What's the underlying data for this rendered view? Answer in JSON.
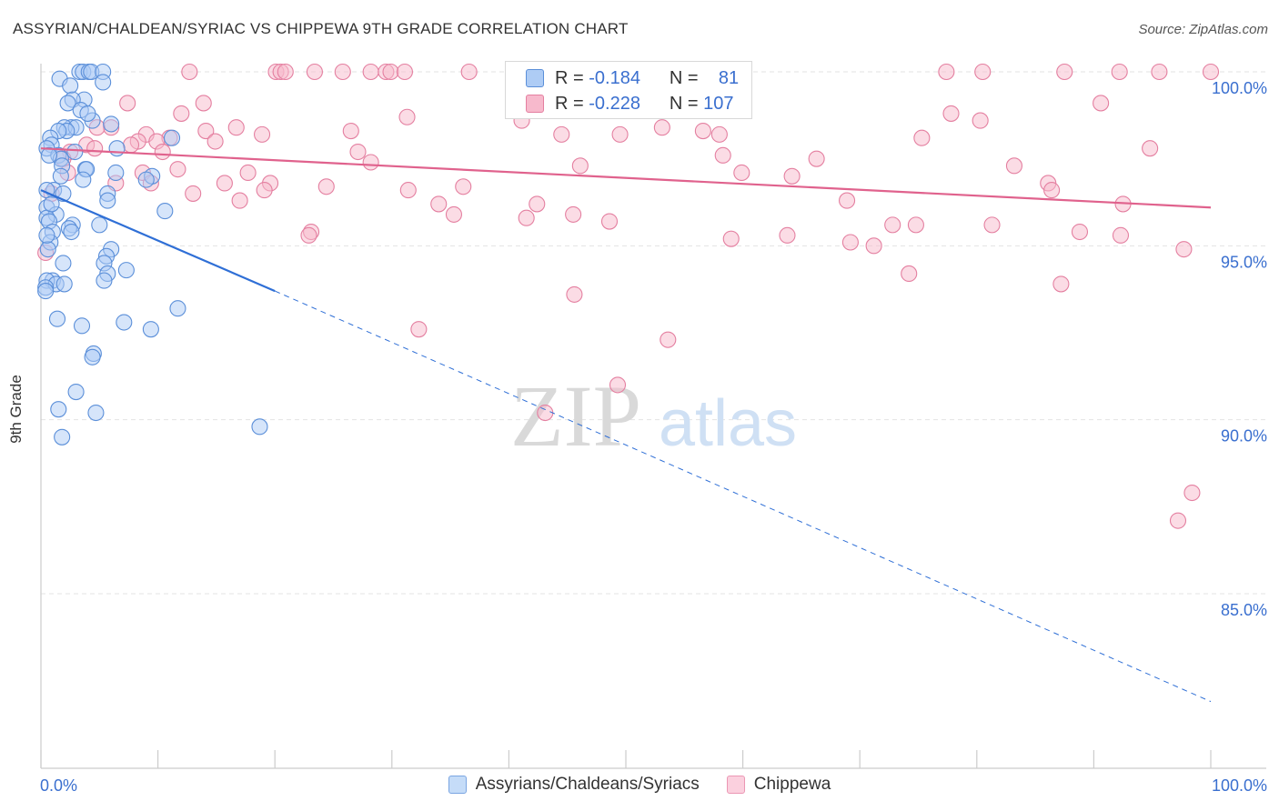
{
  "title": "ASSYRIAN/CHALDEAN/SYRIAC VS CHIPPEWA 9TH GRADE CORRELATION CHART",
  "source": "Source: ZipAtlas.com",
  "watermark": {
    "zip": "ZIP",
    "atlas": "atlas"
  },
  "colors": {
    "blue_fill": "#aeccf5",
    "blue_stroke": "#5b8fd9",
    "blue_line": "#2f6fd6",
    "pink_fill": "#f7b9cc",
    "pink_stroke": "#e47fa0",
    "pink_line": "#e0628d",
    "axis_text": "#3a6fcf",
    "grid": "#e3e3e3"
  },
  "legend_top": {
    "rows": [
      {
        "r_label": "R =",
        "r_value": "-0.184",
        "n_label": "N =",
        "n_value": "81"
      },
      {
        "r_label": "R =",
        "r_value": "-0.228",
        "n_label": "N =",
        "n_value": "107"
      }
    ]
  },
  "legend_bottom": [
    "Assyrians/Chaldeans/Syriacs",
    "Chippewa"
  ],
  "chart_data": {
    "type": "scatter",
    "title": "ASSYRIAN/CHALDEAN/SYRIAC VS CHIPPEWA 9TH GRADE CORRELATION CHART",
    "xlabel": "",
    "ylabel": "9th Grade",
    "xlim": [
      0,
      100
    ],
    "ylim": [
      80.5,
      100.8
    ],
    "x_tick_labels": [
      {
        "value": 0,
        "label": "0.0%"
      },
      {
        "value": 100,
        "label": "100.0%"
      }
    ],
    "y_ticks": [
      {
        "value": 100,
        "label": "100.0%"
      },
      {
        "value": 95,
        "label": "95.0%"
      },
      {
        "value": 90,
        "label": "90.0%"
      },
      {
        "value": 85,
        "label": "85.0%"
      }
    ],
    "grid": true,
    "legend_position": "bottom",
    "series": [
      {
        "name": "Assyrians/Chaldeans/Syriacs",
        "R": -0.184,
        "N": 81,
        "trend": {
          "x0": 0,
          "y0": 96.6,
          "x1": 20,
          "y1": 93.7,
          "dashed_to_x": 100,
          "dashed_to_y": 81.9
        },
        "points": [
          [
            3.3,
            100.0
          ],
          [
            3.6,
            100.0
          ],
          [
            4.1,
            100.0
          ],
          [
            4.3,
            100.0
          ],
          [
            5.3,
            100.0
          ],
          [
            1.6,
            99.8
          ],
          [
            2.5,
            99.6
          ],
          [
            5.3,
            99.7
          ],
          [
            3.7,
            99.2
          ],
          [
            2.7,
            99.2
          ],
          [
            2.3,
            99.1
          ],
          [
            3.4,
            98.9
          ],
          [
            4.4,
            98.6
          ],
          [
            2.6,
            98.4
          ],
          [
            2.0,
            98.4
          ],
          [
            3.0,
            98.4
          ],
          [
            6.0,
            98.5
          ],
          [
            2.2,
            98.3
          ],
          [
            1.5,
            98.3
          ],
          [
            0.8,
            98.1
          ],
          [
            11.2,
            98.1
          ],
          [
            0.9,
            97.9
          ],
          [
            0.5,
            97.8
          ],
          [
            6.5,
            97.8
          ],
          [
            1.5,
            97.6
          ],
          [
            1.7,
            97.5
          ],
          [
            0.7,
            97.6
          ],
          [
            1.8,
            97.3
          ],
          [
            3.8,
            97.2
          ],
          [
            3.9,
            97.2
          ],
          [
            6.4,
            97.1
          ],
          [
            1.7,
            97.0
          ],
          [
            9.5,
            97.0
          ],
          [
            3.6,
            96.9
          ],
          [
            9.0,
            96.9
          ],
          [
            1.1,
            96.6
          ],
          [
            0.5,
            96.6
          ],
          [
            1.9,
            96.5
          ],
          [
            5.7,
            96.5
          ],
          [
            5.7,
            96.3
          ],
          [
            0.5,
            96.1
          ],
          [
            1.3,
            95.9
          ],
          [
            10.6,
            96.0
          ],
          [
            0.5,
            95.8
          ],
          [
            0.7,
            95.7
          ],
          [
            2.7,
            95.6
          ],
          [
            2.4,
            95.5
          ],
          [
            5.0,
            95.6
          ],
          [
            1.0,
            95.4
          ],
          [
            2.6,
            95.4
          ],
          [
            0.8,
            95.1
          ],
          [
            0.6,
            94.9
          ],
          [
            6.0,
            94.9
          ],
          [
            5.6,
            94.7
          ],
          [
            5.4,
            94.5
          ],
          [
            1.9,
            94.5
          ],
          [
            5.7,
            94.2
          ],
          [
            5.4,
            94.0
          ],
          [
            1.0,
            94.0
          ],
          [
            0.5,
            94.0
          ],
          [
            1.3,
            93.9
          ],
          [
            0.4,
            93.8
          ],
          [
            0.4,
            93.7
          ],
          [
            11.7,
            93.2
          ],
          [
            1.4,
            92.9
          ],
          [
            7.1,
            92.8
          ],
          [
            3.5,
            92.7
          ],
          [
            9.4,
            92.6
          ],
          [
            4.5,
            91.9
          ],
          [
            4.4,
            91.8
          ],
          [
            3.0,
            90.8
          ],
          [
            1.5,
            90.3
          ],
          [
            4.7,
            90.2
          ],
          [
            18.7,
            89.8
          ],
          [
            1.8,
            89.5
          ],
          [
            0.5,
            95.3
          ],
          [
            2.9,
            97.7
          ],
          [
            0.9,
            96.2
          ],
          [
            7.3,
            94.3
          ],
          [
            2.0,
            93.9
          ],
          [
            4.0,
            98.8
          ]
        ]
      },
      {
        "name": "Chippewa",
        "R": -0.228,
        "N": 107,
        "trend": {
          "x0": 0,
          "y0": 97.8,
          "x1": 100,
          "y1": 96.1
        },
        "points": [
          [
            12.7,
            100.0
          ],
          [
            20.1,
            100.0
          ],
          [
            20.5,
            100.0
          ],
          [
            20.9,
            100.0
          ],
          [
            23.4,
            100.0
          ],
          [
            25.8,
            100.0
          ],
          [
            28.2,
            100.0
          ],
          [
            29.5,
            100.0
          ],
          [
            29.9,
            100.0
          ],
          [
            31.1,
            100.0
          ],
          [
            36.6,
            100.0
          ],
          [
            40.8,
            100.0
          ],
          [
            41.8,
            100.0
          ],
          [
            77.4,
            100.0
          ],
          [
            80.5,
            100.0
          ],
          [
            87.5,
            100.0
          ],
          [
            92.2,
            100.0
          ],
          [
            95.6,
            100.0
          ],
          [
            100.0,
            100.0
          ],
          [
            44.1,
            99.9
          ],
          [
            7.4,
            99.1
          ],
          [
            13.9,
            99.1
          ],
          [
            12.0,
            98.8
          ],
          [
            90.6,
            99.1
          ],
          [
            77.8,
            98.8
          ],
          [
            31.3,
            98.7
          ],
          [
            41.1,
            98.6
          ],
          [
            80.3,
            98.6
          ],
          [
            6.0,
            98.4
          ],
          [
            4.8,
            98.4
          ],
          [
            16.7,
            98.4
          ],
          [
            26.5,
            98.3
          ],
          [
            53.1,
            98.4
          ],
          [
            14.1,
            98.3
          ],
          [
            9.0,
            98.2
          ],
          [
            18.9,
            98.2
          ],
          [
            49.5,
            98.2
          ],
          [
            56.6,
            98.3
          ],
          [
            11.0,
            98.1
          ],
          [
            8.3,
            98.0
          ],
          [
            9.9,
            98.0
          ],
          [
            14.9,
            98.0
          ],
          [
            7.7,
            97.9
          ],
          [
            3.9,
            97.9
          ],
          [
            44.5,
            98.2
          ],
          [
            58.0,
            98.2
          ],
          [
            75.3,
            98.1
          ],
          [
            94.8,
            97.8
          ],
          [
            4.6,
            97.8
          ],
          [
            10.4,
            97.7
          ],
          [
            2.5,
            97.7
          ],
          [
            1.9,
            97.5
          ],
          [
            27.1,
            97.7
          ],
          [
            28.2,
            97.4
          ],
          [
            58.3,
            97.6
          ],
          [
            66.3,
            97.5
          ],
          [
            46.1,
            97.3
          ],
          [
            83.2,
            97.3
          ],
          [
            2.3,
            97.1
          ],
          [
            11.7,
            97.2
          ],
          [
            8.7,
            97.1
          ],
          [
            17.7,
            97.1
          ],
          [
            59.9,
            97.1
          ],
          [
            64.2,
            97.0
          ],
          [
            6.4,
            96.8
          ],
          [
            9.4,
            96.8
          ],
          [
            15.7,
            96.8
          ],
          [
            19.6,
            96.8
          ],
          [
            24.4,
            96.7
          ],
          [
            36.1,
            96.7
          ],
          [
            31.4,
            96.6
          ],
          [
            86.1,
            96.8
          ],
          [
            86.4,
            96.6
          ],
          [
            19.1,
            96.6
          ],
          [
            0.9,
            96.5
          ],
          [
            13.0,
            96.5
          ],
          [
            17.0,
            96.3
          ],
          [
            68.9,
            96.3
          ],
          [
            34.0,
            96.2
          ],
          [
            92.5,
            96.2
          ],
          [
            42.4,
            96.2
          ],
          [
            35.3,
            95.9
          ],
          [
            41.5,
            95.8
          ],
          [
            45.5,
            95.9
          ],
          [
            48.6,
            95.7
          ],
          [
            72.8,
            95.6
          ],
          [
            74.8,
            95.6
          ],
          [
            81.3,
            95.6
          ],
          [
            23.1,
            95.4
          ],
          [
            22.9,
            95.3
          ],
          [
            63.8,
            95.3
          ],
          [
            59.0,
            95.2
          ],
          [
            69.2,
            95.1
          ],
          [
            71.2,
            95.0
          ],
          [
            88.8,
            95.4
          ],
          [
            92.3,
            95.3
          ],
          [
            97.7,
            94.9
          ],
          [
            0.4,
            94.8
          ],
          [
            74.2,
            94.2
          ],
          [
            87.2,
            93.9
          ],
          [
            45.6,
            93.6
          ],
          [
            32.3,
            92.6
          ],
          [
            53.6,
            92.3
          ],
          [
            49.3,
            91.0
          ],
          [
            43.1,
            90.2
          ],
          [
            98.4,
            87.9
          ],
          [
            97.2,
            87.1
          ]
        ]
      }
    ]
  }
}
